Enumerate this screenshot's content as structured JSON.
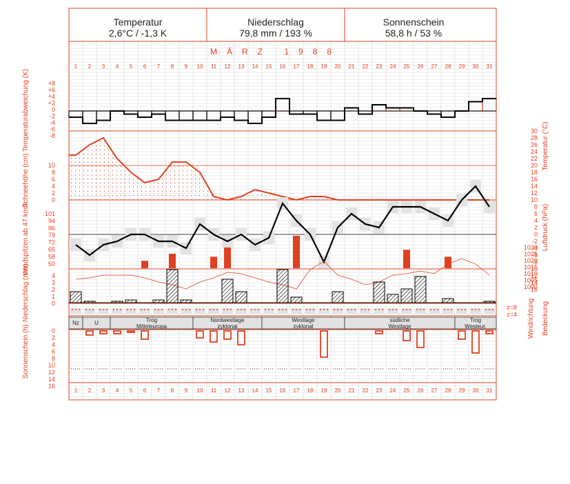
{
  "header": {
    "cells": [
      {
        "title": "Temperatur",
        "value": "2,6°C / -1,3 K"
      },
      {
        "title": "Niederschlag",
        "value": "79,8 mm / 193 %"
      },
      {
        "title": "Sonnenschein",
        "value": "58,8 h / 53 %"
      }
    ]
  },
  "month_label": "MÄRZ  1988",
  "days": [
    "1",
    "2",
    "3",
    "4",
    "5",
    "6",
    "7",
    "8",
    "9",
    "10",
    "11",
    "12",
    "13",
    "14",
    "15",
    "16",
    "17",
    "18",
    "19",
    "20",
    "21",
    "22",
    "23",
    "24",
    "25",
    "26",
    "27",
    "28",
    "29",
    "30",
    "31"
  ],
  "panel_labels": {
    "temp_anomaly": "Temperaturabweichung (K)",
    "snow": "Schneehöhe (cm)",
    "wind": "Windspitzen ab 47 km/h",
    "precip": "Niederschlag (mm)",
    "sun": "Sonnenschein (h)",
    "temperature": "Temperatur (°C)",
    "pressure": "Luftdruck (hPa)",
    "wind_dir": "Windrichtung",
    "cloud": "Bedeckung"
  },
  "axis_ticks": {
    "temp_anomaly": [
      "+8",
      "+6",
      "+4",
      "+2",
      "0",
      "-2",
      "-4",
      "-6",
      "-8"
    ],
    "snow": [
      "10",
      "8",
      "6",
      "4",
      "2",
      "0"
    ],
    "wind": [
      "101",
      "94",
      "86",
      "79",
      "72",
      "65",
      "58",
      "50"
    ],
    "precip": [
      "4",
      "3",
      "2",
      "1",
      "0"
    ],
    "sun": [
      "0",
      "2",
      "4",
      "6",
      "8",
      "10",
      "12",
      "14",
      "16"
    ],
    "temperature": [
      "30",
      "28",
      "26",
      "24",
      "22",
      "20",
      "18",
      "16",
      "14",
      "12",
      "10",
      "8",
      "6",
      "4",
      "2",
      "0",
      "-2",
      "-4",
      "-6",
      "-8",
      "-10",
      "-12",
      "-14",
      "-16"
    ],
    "pressure": [
      "1030",
      "1025",
      "1020",
      "1015",
      "1010",
      "1005",
      "1000"
    ],
    "wind_code": [
      "z=8",
      "z=4"
    ]
  },
  "weather_types": [
    {
      "label": "Nz",
      "from": 1,
      "to": 1
    },
    {
      "label": "U",
      "from": 2,
      "to": 3
    },
    {
      "label": "Trog Mitteleuropa",
      "from": 4,
      "to": 9
    },
    {
      "label": "Nordwestlage zyklonal",
      "from": 10,
      "to": 14
    },
    {
      "label": "Westlage zyklonal",
      "from": 15,
      "to": 20
    },
    {
      "label": "südliche Westlage",
      "from": 21,
      "to": 28
    },
    {
      "label": "Trog Westeur.",
      "from": 29,
      "to": 31
    }
  ],
  "colors": {
    "accent": "#e04020",
    "grid": "#d8d8d8",
    "band": "#e2e2e2",
    "line": "#000000"
  },
  "chart_data": {
    "type": "line",
    "x": [
      1,
      2,
      3,
      4,
      5,
      6,
      7,
      8,
      9,
      10,
      11,
      12,
      13,
      14,
      15,
      16,
      17,
      18,
      19,
      20,
      21,
      22,
      23,
      24,
      25,
      26,
      27,
      28,
      29,
      30,
      31
    ],
    "temp_anomaly_K": [
      -2,
      -4,
      -3,
      0,
      -1,
      -2,
      -1,
      -3,
      -3,
      -3,
      -3,
      -2,
      -3,
      -4,
      -2,
      4,
      -1,
      -1,
      -3,
      -3,
      1,
      -1,
      2,
      1,
      1,
      0,
      -1,
      -2,
      0,
      3,
      4
    ],
    "snow_depth_cm": [
      13,
      16,
      18,
      12,
      8,
      5,
      6,
      11,
      11,
      8,
      1,
      0,
      1,
      3,
      2,
      1,
      0,
      1,
      1,
      0,
      0,
      0,
      0,
      0,
      0,
      0,
      0,
      0,
      0,
      0,
      0
    ],
    "temperature_C": [
      -3,
      -6,
      -3,
      -2,
      0,
      0,
      -2,
      -2,
      -4,
      3,
      0,
      -2,
      0,
      -3,
      -1,
      9,
      4,
      0,
      -8,
      2,
      6,
      3,
      2,
      8,
      8,
      8,
      6,
      4,
      10,
      14,
      8
    ],
    "precip_mm": [
      1.6,
      0.2,
      0,
      0.2,
      0.4,
      0,
      0.4,
      4.8,
      0.4,
      0,
      0,
      3.4,
      1.6,
      0,
      0,
      4.8,
      0.8,
      0,
      0,
      1.6,
      0,
      0,
      3.0,
      1.2,
      2.0,
      3.8,
      0,
      0.6,
      0,
      0,
      0.2
    ],
    "sunshine_h": [
      0,
      1.5,
      1.0,
      1.0,
      0.5,
      3.0,
      0,
      0,
      0,
      2.5,
      4.0,
      3.0,
      5.0,
      0,
      0,
      0,
      0,
      0,
      9.5,
      0,
      0,
      0,
      1.0,
      0,
      3.5,
      6.0,
      0,
      0,
      3.0,
      8.0,
      1.0
    ],
    "wind_gusts": [
      {
        "day": 6,
        "kmh": 54
      },
      {
        "day": 8,
        "kmh": 61
      },
      {
        "day": 11,
        "kmh": 58
      },
      {
        "day": 12,
        "kmh": 68
      },
      {
        "day": 17,
        "kmh": 79
      },
      {
        "day": 25,
        "kmh": 65
      },
      {
        "day": 28,
        "kmh": 58
      }
    ],
    "pressure_hPa": [
      1007,
      1008,
      1010,
      1010,
      1010,
      1008,
      1005,
      1003,
      1000,
      1005,
      1008,
      1012,
      1011,
      1008,
      1005,
      1003,
      1000,
      1014,
      1020,
      1010,
      1007,
      1003,
      1005,
      1010,
      1011,
      1013,
      1011,
      1018,
      1022,
      1018,
      1010
    ]
  }
}
